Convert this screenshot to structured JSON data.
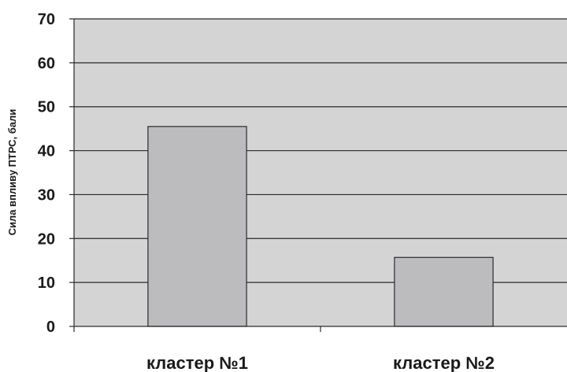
{
  "chart_data": {
    "type": "bar",
    "categories": [
      "кластер №1",
      "кластер №2"
    ],
    "values": [
      45.5,
      15.7
    ],
    "title": "",
    "xlabel": "",
    "ylabel": "Сила впливу ПТРС, бали",
    "ylim": [
      0,
      70
    ],
    "yticks": [
      0,
      10,
      20,
      30,
      40,
      50,
      60,
      70
    ],
    "grid": true,
    "legend": "none",
    "colors": {
      "plot_background": "#d4d4d4",
      "bar_fill": "#bcbcbf",
      "bar_stroke": "#2a2a2a",
      "gridline": "#2a2a2a"
    }
  }
}
